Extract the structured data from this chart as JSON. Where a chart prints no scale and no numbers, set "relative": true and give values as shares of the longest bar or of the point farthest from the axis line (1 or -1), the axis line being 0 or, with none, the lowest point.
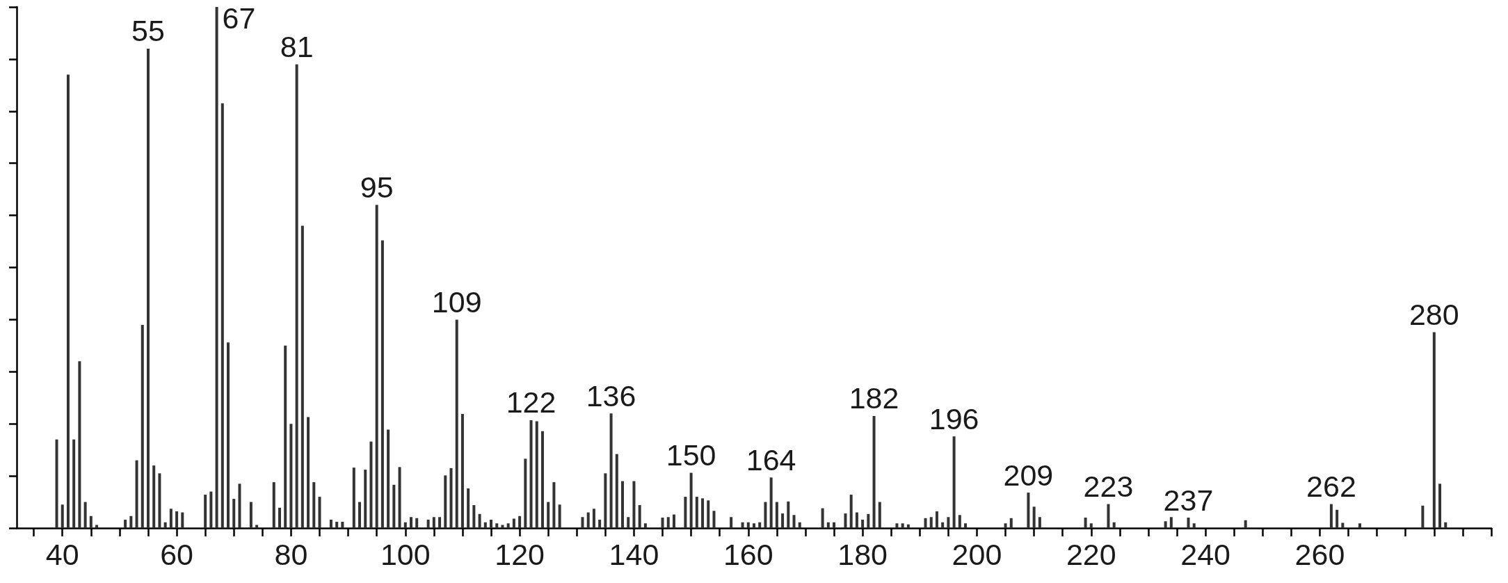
{
  "chart_data": {
    "type": "bar",
    "relative": true,
    "color": "#333333",
    "x": [
      39,
      40,
      41,
      42,
      43,
      44,
      45,
      46,
      51,
      52,
      53,
      54,
      55,
      56,
      57,
      58,
      59,
      60,
      61,
      65,
      66,
      67,
      68,
      69,
      70,
      71,
      73,
      74,
      77,
      78,
      79,
      80,
      81,
      82,
      83,
      84,
      85,
      87,
      88,
      89,
      91,
      92,
      93,
      94,
      95,
      96,
      97,
      98,
      99,
      100,
      101,
      102,
      104,
      105,
      106,
      107,
      108,
      109,
      110,
      111,
      112,
      113,
      114,
      115,
      116,
      117,
      118,
      119,
      120,
      121,
      122,
      123,
      124,
      125,
      126,
      127,
      131,
      132,
      133,
      134,
      135,
      136,
      137,
      138,
      139,
      140,
      141,
      142,
      145,
      146,
      147,
      149,
      150,
      151,
      152,
      153,
      154,
      157,
      159,
      160,
      161,
      162,
      163,
      164,
      165,
      166,
      167,
      168,
      169,
      173,
      174,
      175,
      177,
      178,
      179,
      180,
      181,
      182,
      183,
      186,
      187,
      188,
      191,
      192,
      193,
      194,
      195,
      196,
      197,
      198,
      205,
      206,
      209,
      210,
      211,
      219,
      220,
      223,
      224,
      233,
      234,
      237,
      238,
      247,
      262,
      263,
      264,
      267,
      278,
      280,
      281,
      282
    ],
    "values": [
      0.17,
      0.045,
      0.87,
      0.17,
      0.32,
      0.05,
      0.023,
      0.006,
      0.016,
      0.023,
      0.13,
      0.39,
      0.92,
      0.12,
      0.105,
      0.011,
      0.037,
      0.032,
      0.03,
      0.064,
      0.07,
      1.0,
      0.815,
      0.356,
      0.056,
      0.085,
      0.05,
      0.006,
      0.088,
      0.039,
      0.35,
      0.2,
      0.89,
      0.58,
      0.213,
      0.088,
      0.06,
      0.016,
      0.012,
      0.012,
      0.116,
      0.05,
      0.112,
      0.166,
      0.62,
      0.552,
      0.189,
      0.083,
      0.117,
      0.011,
      0.021,
      0.019,
      0.016,
      0.021,
      0.021,
      0.101,
      0.115,
      0.4,
      0.219,
      0.076,
      0.044,
      0.027,
      0.011,
      0.016,
      0.009,
      0.006,
      0.009,
      0.018,
      0.023,
      0.133,
      0.207,
      0.205,
      0.186,
      0.05,
      0.088,
      0.045,
      0.021,
      0.03,
      0.037,
      0.016,
      0.105,
      0.22,
      0.142,
      0.09,
      0.021,
      0.09,
      0.044,
      0.009,
      0.02,
      0.021,
      0.026,
      0.06,
      0.106,
      0.06,
      0.057,
      0.053,
      0.033,
      0.021,
      0.011,
      0.011,
      0.009,
      0.011,
      0.05,
      0.097,
      0.05,
      0.028,
      0.051,
      0.025,
      0.011,
      0.038,
      0.011,
      0.011,
      0.028,
      0.064,
      0.03,
      0.016,
      0.027,
      0.215,
      0.05,
      0.009,
      0.009,
      0.007,
      0.019,
      0.021,
      0.032,
      0.011,
      0.021,
      0.176,
      0.025,
      0.009,
      0.009,
      0.019,
      0.068,
      0.041,
      0.021,
      0.02,
      0.009,
      0.046,
      0.011,
      0.013,
      0.021,
      0.02,
      0.009,
      0.015,
      0.046,
      0.035,
      0.01,
      0.009,
      0.043,
      0.376,
      0.085,
      0.011
    ],
    "xlim": [
      32,
      290
    ],
    "xticks": [
      {
        "value": 35,
        "label": null
      },
      40,
      {
        "value": 45,
        "label": null
      },
      {
        "value": 50,
        "label": null
      },
      {
        "value": 55,
        "label": null
      },
      60,
      {
        "value": 65,
        "label": null
      },
      {
        "value": 70,
        "label": null
      },
      {
        "value": 75,
        "label": null
      },
      80,
      {
        "value": 85,
        "label": null
      },
      {
        "value": 90,
        "label": null
      },
      {
        "value": 95,
        "label": null
      },
      100,
      {
        "value": 105,
        "label": null
      },
      {
        "value": 110,
        "label": null
      },
      {
        "value": 115,
        "label": null
      },
      120,
      {
        "value": 125,
        "label": null
      },
      {
        "value": 130,
        "label": null
      },
      {
        "value": 135,
        "label": null
      },
      140,
      {
        "value": 145,
        "label": null
      },
      {
        "value": 150,
        "label": null
      },
      {
        "value": 155,
        "label": null
      },
      160,
      {
        "value": 165,
        "label": null
      },
      {
        "value": 170,
        "label": null
      },
      {
        "value": 175,
        "label": null
      },
      180,
      {
        "value": 185,
        "label": null
      },
      {
        "value": 190,
        "label": null
      },
      {
        "value": 195,
        "label": null
      },
      200,
      {
        "value": 205,
        "label": null
      },
      {
        "value": 210,
        "label": null
      },
      {
        "value": 215,
        "label": null
      },
      220,
      {
        "value": 225,
        "label": null
      },
      {
        "value": 230,
        "label": null
      },
      {
        "value": 235,
        "label": null
      },
      240,
      {
        "value": 245,
        "label": null
      },
      {
        "value": 250,
        "label": null
      },
      {
        "value": 255,
        "label": null
      },
      260,
      {
        "value": 265,
        "label": null
      },
      {
        "value": 270,
        "label": null
      },
      {
        "value": 275,
        "label": null
      },
      {
        "value": 280,
        "label": null
      },
      {
        "value": 285,
        "label": null
      },
      {
        "value": 290,
        "label": null
      }
    ],
    "annotations": [
      {
        "text": "55",
        "x": 55,
        "y": 0.92
      },
      {
        "text": "67",
        "x": 67,
        "y": 1.0
      },
      {
        "text": "81",
        "x": 81,
        "y": 0.89
      },
      {
        "text": "95",
        "x": 95,
        "y": 0.62
      },
      {
        "text": "109",
        "x": 109,
        "y": 0.4
      },
      {
        "text": "122",
        "x": 122,
        "y": 0.207
      },
      {
        "text": "136",
        "x": 136,
        "y": 0.22
      },
      {
        "text": "150",
        "x": 150,
        "y": 0.106
      },
      {
        "text": "164",
        "x": 164,
        "y": 0.097
      },
      {
        "text": "182",
        "x": 182,
        "y": 0.215
      },
      {
        "text": "196",
        "x": 196,
        "y": 0.176
      },
      {
        "text": "209",
        "x": 209,
        "y": 0.068
      },
      {
        "text": "223",
        "x": 223,
        "y": 0.046
      },
      {
        "text": "237",
        "x": 237,
        "y": 0.02
      },
      {
        "text": "262",
        "x": 262,
        "y": 0.046
      },
      {
        "text": "280",
        "x": 280,
        "y": 0.376
      }
    ]
  }
}
